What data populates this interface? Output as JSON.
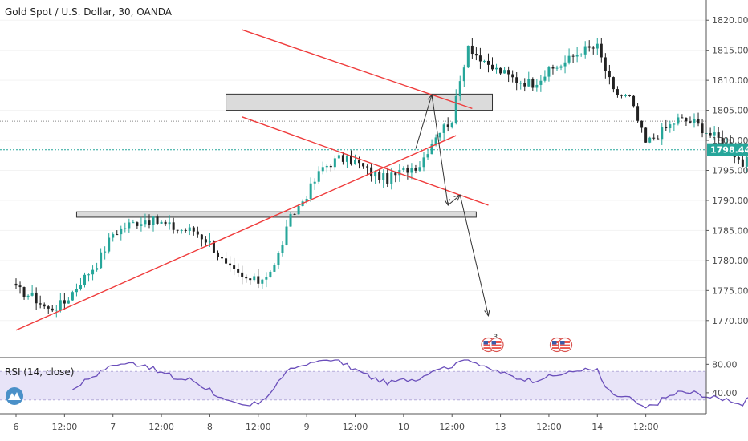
{
  "chart_data": {
    "type": "candlestick",
    "title": "Gold Spot / U.S. Dollar, 30, OANDA",
    "price_axis": {
      "ticks": [
        "1820.000",
        "1815.000",
        "1810.000",
        "1805.000",
        "1800.000",
        "1795.000",
        "1790.000",
        "1785.000",
        "1780.000",
        "1775.000",
        "1770.000"
      ],
      "range": [
        1766.5,
        1821.5
      ]
    },
    "last_price": {
      "value": 1798.446,
      "label": "1798.446",
      "color": "#26a69a"
    },
    "prev_close_level": 1803.2,
    "time_axis": {
      "ticks": [
        "6",
        "12:00",
        "7",
        "12:00",
        "8",
        "12:00",
        "9",
        "12:00",
        "10",
        "12:00",
        "13",
        "12:00",
        "14",
        "12:00"
      ],
      "bar_range": [
        0,
        168
      ]
    },
    "close_series": {
      "start_bar": 0,
      "bars_per_point": 4,
      "values": [
        1775.2,
        1774.0,
        1771.8,
        1773.0,
        1776.5,
        1779.5,
        1784.5,
        1786.0,
        1786.8,
        1786.2,
        1785.2,
        1785.0,
        1783.0,
        1779.0,
        1777.0,
        1776.5,
        1779.0,
        1787.0,
        1791.0,
        1795.5,
        1797.0,
        1796.5,
        1794.5,
        1793.5,
        1795.0,
        1796.0,
        1801.0,
        1803.5,
        1816.0,
        1812.5,
        1811.5,
        1810.0,
        1809.5,
        1811.5,
        1813.0,
        1815.0,
        1815.5,
        1808.0,
        1807.0,
        1799.5,
        1801.5,
        1803.5,
        1803.0,
        1801.0,
        1799.5,
        1796.0,
        1798.0,
        1806.0,
        1808.5,
        1808.0,
        1803.0,
        1797.0,
        1798.6
      ],
      "up_color": "#26a69a",
      "down_color": "#222222"
    },
    "drawings": {
      "trend_lines": [
        {
          "name": "descending-channel-upper",
          "from": [
            56,
            1818.4
          ],
          "to": [
            113,
            1805.3
          ],
          "color": "#ef3b3b"
        },
        {
          "name": "descending-channel-lower",
          "from": [
            56,
            1803.9
          ],
          "to": [
            117,
            1789.2
          ],
          "color": "#ef3b3b"
        },
        {
          "name": "ascending-support-line",
          "from": [
            0,
            1768.4
          ],
          "to": [
            109,
            1800.8
          ],
          "color": "#ef3b3b"
        }
      ],
      "zones": [
        {
          "name": "resistance-zone",
          "from_bar": 52,
          "to_bar": 118,
          "high": 1807.7,
          "low": 1805.0
        },
        {
          "name": "support-zone",
          "from_bar": 15,
          "to_bar": 114,
          "high": 1788.1,
          "low": 1787.2
        }
      ],
      "projection_path": [
        [
          99,
          1798.6
        ],
        [
          103,
          1807.6
        ],
        [
          107,
          1789.2
        ],
        [
          110,
          1790.9
        ],
        [
          117,
          1770.8
        ]
      ],
      "projection_color": "#333333"
    },
    "event_markers": [
      {
        "bar": 117,
        "badge": "3"
      },
      {
        "bar": 119,
        "badge": ""
      },
      {
        "bar": 134,
        "badge": ""
      },
      {
        "bar": 136,
        "badge": ""
      }
    ],
    "rsi": {
      "title": "RSI (14, close)",
      "length": 14,
      "ticks": [
        "80.00",
        "40.00"
      ],
      "band": [
        30,
        70
      ],
      "range": [
        14,
        86
      ],
      "line_color": "#6b4fbb",
      "band_color": "#e8e4f8"
    }
  }
}
